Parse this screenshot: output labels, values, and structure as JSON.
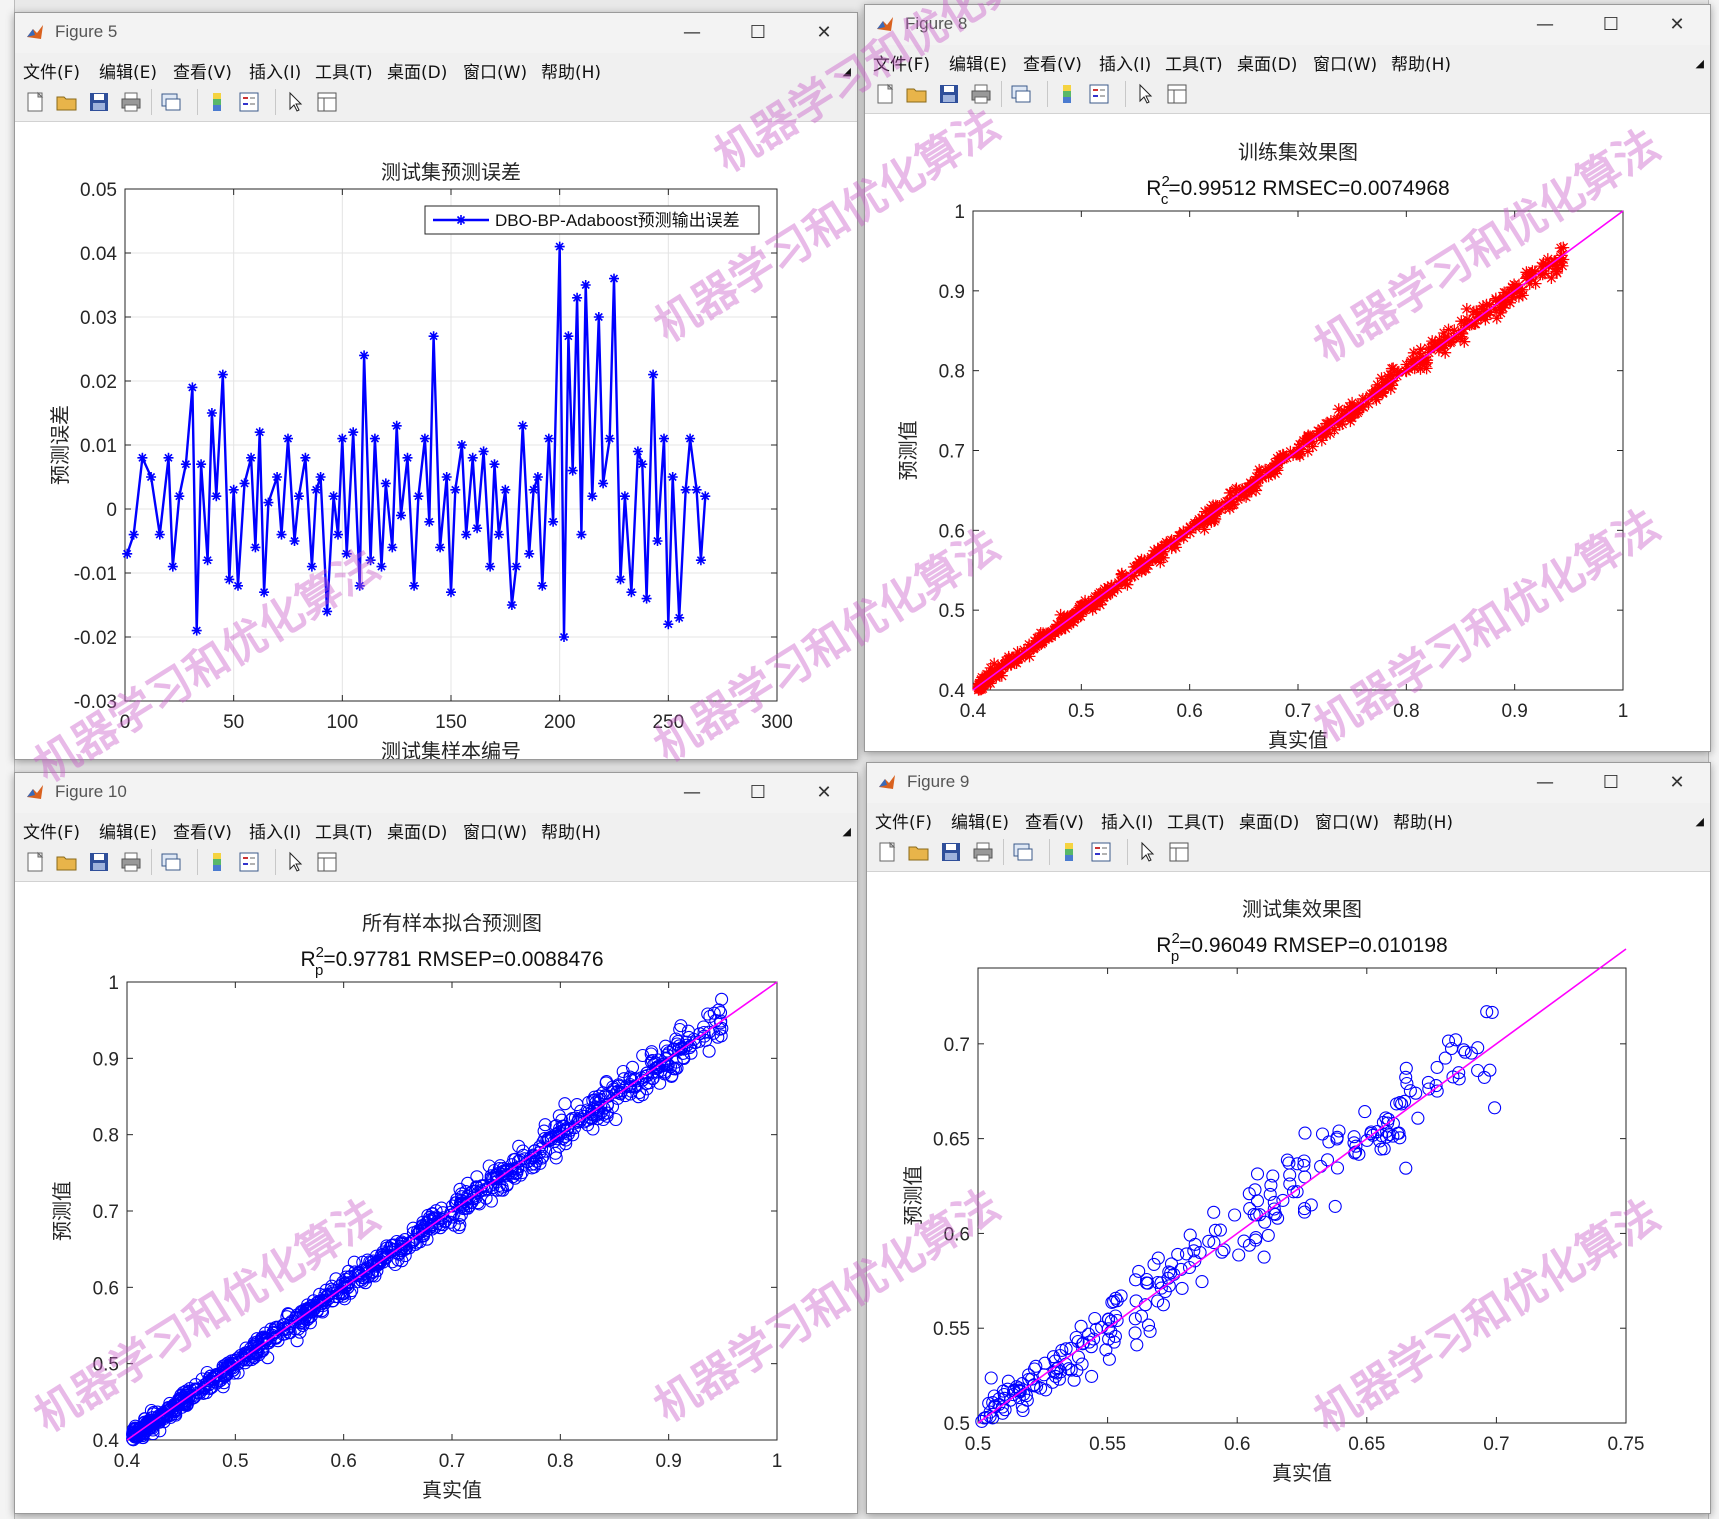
{
  "menu": [
    "文件(F)",
    "编辑(E)",
    "查看(V)",
    "插入(I)",
    "工具(T)",
    "桌面(D)",
    "窗口(W)",
    "帮助(H)"
  ],
  "controls": {
    "minimize": "—",
    "maximize": "☐",
    "close": "✕"
  },
  "toolbar_icons": [
    "new-figure-icon",
    "open-file-icon",
    "save-icon",
    "print-icon",
    "link-plot-icon",
    "colorbar-icon",
    "legend-icon",
    "pointer-icon",
    "property-inspector-icon"
  ],
  "colors": {
    "blue": "#0000ff",
    "red": "#ff0000",
    "magenta": "#ff00ff",
    "grid": "#e4e4e4",
    "watermark": "#c85ac8"
  },
  "watermark": "机器学习和优化算法",
  "figure5": {
    "window_title": "Figure 5",
    "chart_data": {
      "type": "line",
      "title": "测试集预测误差",
      "xlabel": "测试集样本编号",
      "ylabel": "预测误差",
      "xlim": [
        0,
        300
      ],
      "ylim": [
        -0.03,
        0.05
      ],
      "xticks": [
        0,
        50,
        100,
        150,
        200,
        250,
        300
      ],
      "yticks": [
        -0.03,
        -0.02,
        -0.01,
        0,
        0.01,
        0.02,
        0.03,
        0.04,
        0.05
      ],
      "ytick_labels": [
        "-0.03",
        "-0.02",
        "-0.01",
        "0",
        "0.01",
        "0.02",
        "0.03",
        "0.04",
        "0.05"
      ],
      "grid": true,
      "legend_position": "top-right",
      "series": [
        {
          "name": "DBO-BP-Adaboost预测输出误差",
          "marker": "*",
          "color": "#0000ff",
          "x": [
            1,
            4,
            8,
            12,
            16,
            20,
            22,
            25,
            28,
            31,
            33,
            35,
            38,
            40,
            42,
            45,
            48,
            50,
            52,
            55,
            58,
            60,
            62,
            64,
            66,
            70,
            72,
            75,
            78,
            80,
            83,
            86,
            88,
            90,
            93,
            96,
            98,
            100,
            102,
            105,
            108,
            110,
            113,
            115,
            118,
            120,
            123,
            125,
            127,
            130,
            133,
            135,
            138,
            140,
            142,
            145,
            148,
            150,
            152,
            155,
            157,
            160,
            162,
            165,
            168,
            170,
            172,
            175,
            178,
            180,
            183,
            186,
            188,
            190,
            192,
            195,
            197,
            200,
            202,
            204,
            206,
            208,
            210,
            212,
            215,
            218,
            220,
            223,
            225,
            228,
            230,
            233,
            236,
            238,
            240,
            243,
            245,
            248,
            250,
            252,
            255,
            258,
            260,
            263,
            265,
            267
          ],
          "y": [
            -0.007,
            -0.004,
            0.008,
            0.005,
            -0.004,
            0.008,
            -0.009,
            0.002,
            0.007,
            0.019,
            -0.019,
            0.007,
            -0.008,
            0.015,
            0.002,
            0.021,
            -0.011,
            0.003,
            -0.012,
            0.004,
            0.008,
            -0.006,
            0.012,
            -0.013,
            0.001,
            0.005,
            -0.004,
            0.011,
            -0.005,
            0.002,
            0.008,
            -0.009,
            0.003,
            0.005,
            -0.016,
            0.002,
            -0.004,
            0.011,
            -0.007,
            0.012,
            -0.012,
            0.024,
            -0.008,
            0.011,
            -0.009,
            0.004,
            -0.006,
            0.013,
            -0.001,
            0.008,
            -0.012,
            0.002,
            0.011,
            -0.002,
            0.027,
            -0.006,
            0.005,
            -0.013,
            0.003,
            0.01,
            -0.004,
            0.008,
            -0.003,
            0.009,
            -0.009,
            0.007,
            -0.004,
            0.003,
            -0.015,
            -0.009,
            0.013,
            -0.007,
            0.003,
            0.005,
            -0.012,
            0.011,
            -0.002,
            0.041,
            -0.02,
            0.027,
            0.006,
            0.033,
            -0.004,
            0.035,
            0.002,
            0.03,
            0.004,
            0.011,
            0.036,
            -0.011,
            0.002,
            -0.013,
            0.009,
            0.007,
            -0.014,
            0.021,
            -0.005,
            0.011,
            -0.018,
            0.005,
            -0.017,
            0.003,
            0.011,
            0.003,
            -0.008,
            0.002
          ]
        }
      ]
    }
  },
  "figure8": {
    "window_title": "Figure 8",
    "chart_data": {
      "type": "scatter",
      "title": "训练集效果图",
      "subtitle_prefix": "R",
      "subtitle_sup": "2",
      "subtitle_sub": "c",
      "subtitle_rest": "=0.99512  RMSEC=0.0074968",
      "xlabel": "真实值",
      "ylabel": "预测值",
      "xlim": [
        0.4,
        1
      ],
      "ylim": [
        0.4,
        1
      ],
      "xticks": [
        0.4,
        0.5,
        0.6,
        0.7,
        0.8,
        0.9,
        1
      ],
      "yticks": [
        0.4,
        0.5,
        0.6,
        0.7,
        0.8,
        0.9,
        1
      ],
      "xtick_labels": [
        "0.4",
        "0.5",
        "0.6",
        "0.7",
        "0.8",
        "0.9",
        "1"
      ],
      "ytick_labels": [
        "0.4",
        "0.5",
        "0.6",
        "0.7",
        "0.8",
        "0.9",
        "1"
      ],
      "grid": false,
      "marker": "*",
      "color": "#ff0000",
      "fit_line": [
        [
          0.4,
          0.4
        ],
        [
          1,
          1
        ]
      ],
      "n_points": 700,
      "x_range": [
        0.405,
        0.945
      ],
      "residual_sd": 0.006,
      "seed": 11
    }
  },
  "figure10": {
    "window_title": "Figure 10",
    "chart_data": {
      "type": "scatter",
      "title": "所有样本拟合预测图",
      "subtitle_prefix": "R",
      "subtitle_sup": "2",
      "subtitle_sub": "p",
      "subtitle_rest": "=0.97781  RMSEP=0.0088476",
      "xlabel": "真实值",
      "ylabel": "预测值",
      "xlim": [
        0.4,
        1
      ],
      "ylim": [
        0.4,
        1
      ],
      "xticks": [
        0.4,
        0.5,
        0.6,
        0.7,
        0.8,
        0.9,
        1
      ],
      "yticks": [
        0.4,
        0.5,
        0.6,
        0.7,
        0.8,
        0.9,
        1
      ],
      "xtick_labels": [
        "0.4",
        "0.5",
        "0.6",
        "0.7",
        "0.8",
        "0.9",
        "1"
      ],
      "ytick_labels": [
        "0.4",
        "0.5",
        "0.6",
        "0.7",
        "0.8",
        "0.9",
        "1"
      ],
      "grid": false,
      "marker": "o",
      "color": "#0000ff",
      "fit_line": [
        [
          0.4,
          0.4
        ],
        [
          1,
          1
        ]
      ],
      "n_points": 950,
      "x_range": [
        0.405,
        0.95
      ],
      "residual_sd": 0.009,
      "seed": 23
    }
  },
  "figure9": {
    "window_title": "Figure 9",
    "chart_data": {
      "type": "scatter",
      "title": "测试集效果图",
      "subtitle_prefix": "R",
      "subtitle_sup": "2",
      "subtitle_sub": "p",
      "subtitle_rest": "=0.96049  RMSEP=0.010198",
      "xlabel": "真实值",
      "ylabel": "预测值",
      "xlim": [
        0.5,
        0.75
      ],
      "ylim": [
        0.5,
        0.74
      ],
      "xticks": [
        0.5,
        0.55,
        0.6,
        0.65,
        0.7,
        0.75
      ],
      "yticks": [
        0.5,
        0.55,
        0.6,
        0.65,
        0.7
      ],
      "xtick_labels": [
        "0.5",
        "0.55",
        "0.6",
        "0.65",
        "0.7",
        "0.75"
      ],
      "ytick_labels": [
        "0.5",
        "0.55",
        "0.6",
        "0.65",
        "0.7"
      ],
      "grid": false,
      "marker": "o",
      "color": "#0000ff",
      "fit_line": [
        [
          0.5,
          0.5
        ],
        [
          0.75,
          0.75
        ]
      ],
      "n_points": 260,
      "x_range": [
        0.501,
        0.7
      ],
      "residual_sd": 0.01,
      "seed": 37
    }
  }
}
